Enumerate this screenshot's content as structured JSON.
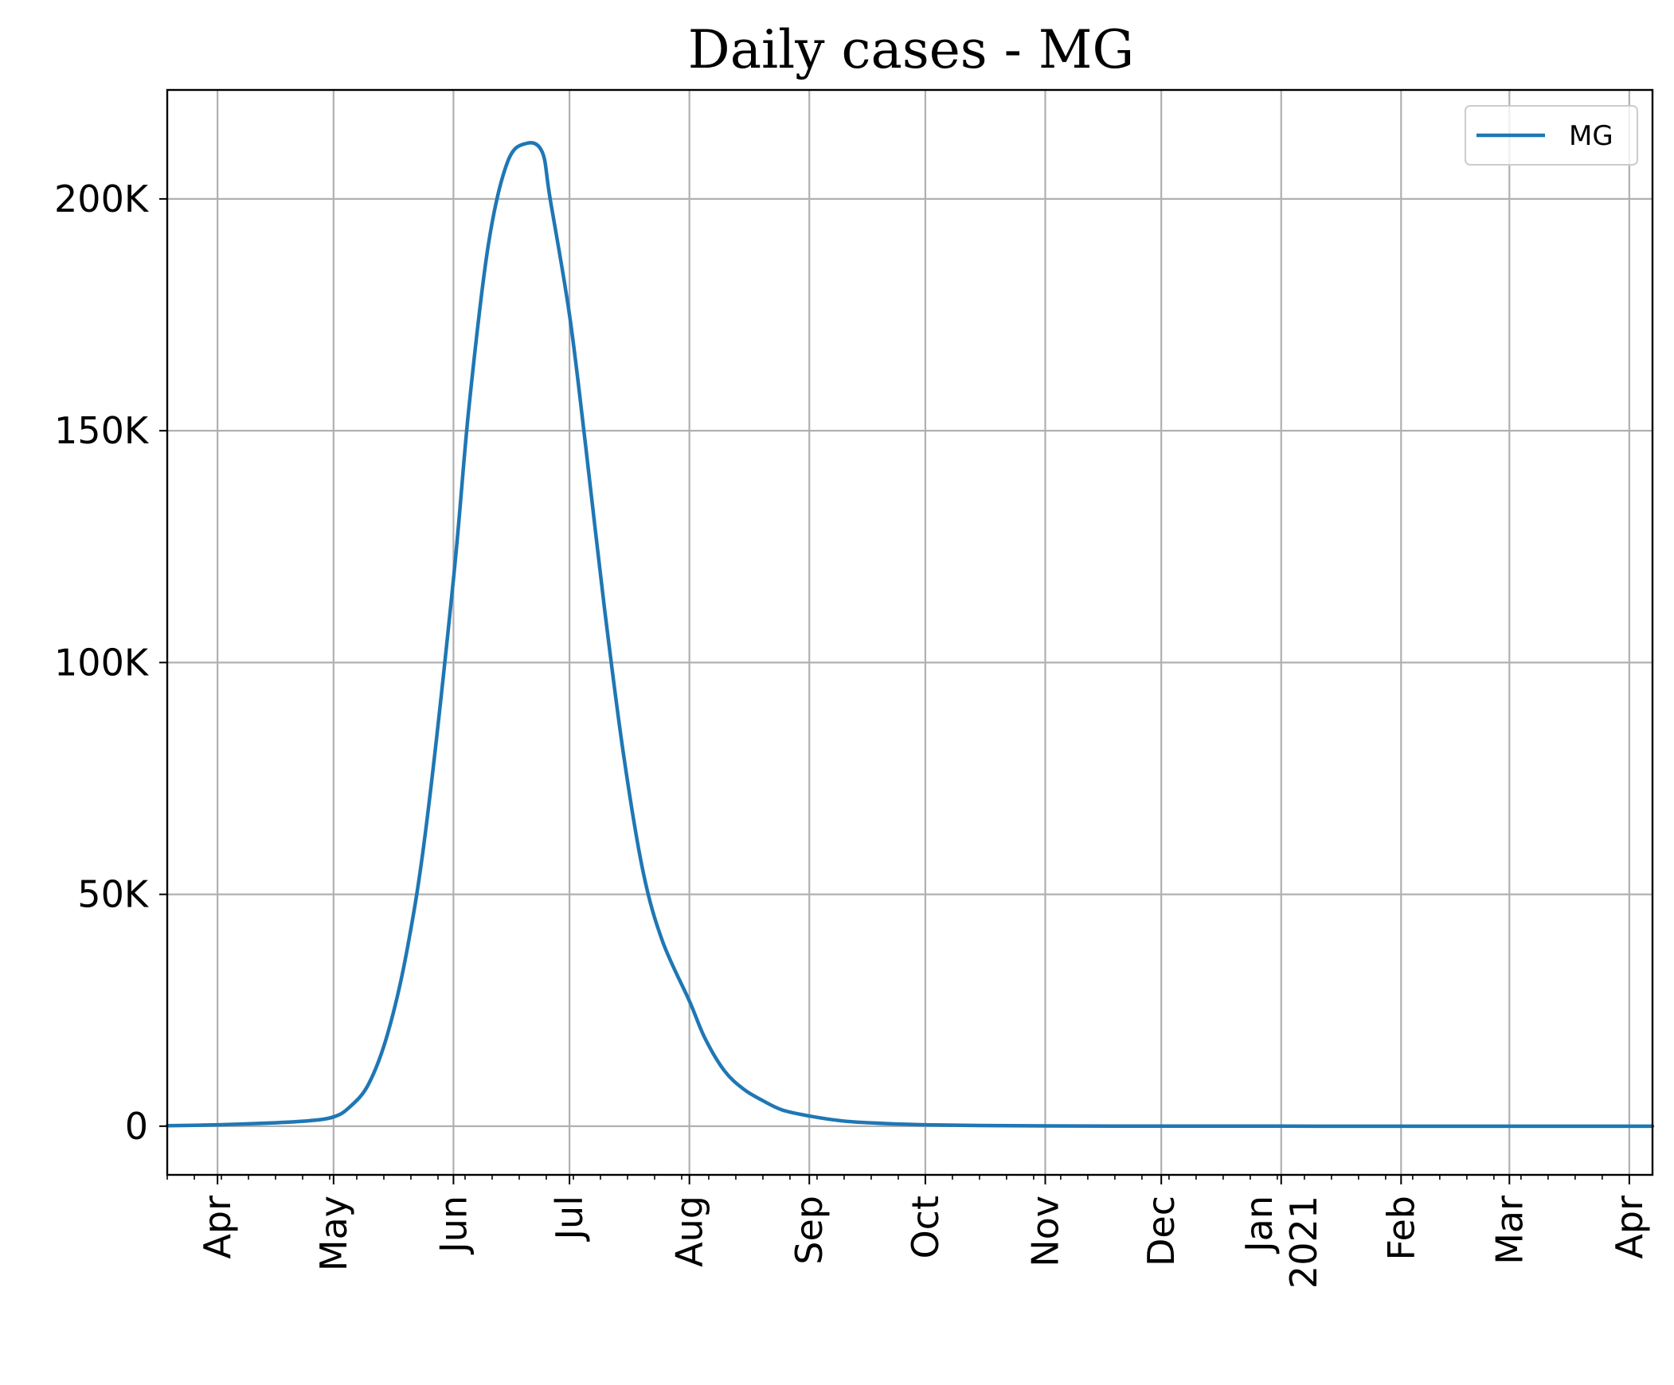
{
  "chart_data": {
    "type": "line",
    "title": "Daily cases - MG",
    "xlabel": "",
    "ylabel": "",
    "x_axis": {
      "type": "date",
      "range": [
        "2020-03-19",
        "2021-04-07"
      ],
      "ticks": [
        {
          "date": "2020-04-01",
          "label": "Apr"
        },
        {
          "date": "2020-05-01",
          "label": "May"
        },
        {
          "date": "2020-06-01",
          "label": "Jun"
        },
        {
          "date": "2020-07-01",
          "label": "Jul"
        },
        {
          "date": "2020-08-01",
          "label": "Aug"
        },
        {
          "date": "2020-09-01",
          "label": "Sep"
        },
        {
          "date": "2020-10-01",
          "label": "Oct"
        },
        {
          "date": "2020-11-01",
          "label": "Nov"
        },
        {
          "date": "2020-12-01",
          "label": "Dec"
        },
        {
          "date": "2021-01-01",
          "label": "Jan\n2021"
        },
        {
          "date": "2021-02-01",
          "label": "Feb"
        },
        {
          "date": "2021-03-01",
          "label": "Mar"
        },
        {
          "date": "2021-04-01",
          "label": "Apr"
        }
      ],
      "minor_ticks": "weekly"
    },
    "y_axis": {
      "range": [
        -10500,
        223500
      ],
      "ticks": [
        {
          "value": 0,
          "label": "0"
        },
        {
          "value": 50000,
          "label": "50K"
        },
        {
          "value": 100000,
          "label": "100K"
        },
        {
          "value": 150000,
          "label": "150K"
        },
        {
          "value": 200000,
          "label": "200K"
        }
      ]
    },
    "grid": true,
    "legend": {
      "position": "top-right",
      "entries": [
        "MG"
      ]
    },
    "series": [
      {
        "name": "MG",
        "color": "#1f77b4",
        "x": [
          "2020-03-19",
          "2020-04-01",
          "2020-04-15",
          "2020-04-25",
          "2020-05-01",
          "2020-05-05",
          "2020-05-10",
          "2020-05-15",
          "2020-05-20",
          "2020-05-25",
          "2020-06-01",
          "2020-06-05",
          "2020-06-10",
          "2020-06-15",
          "2020-06-20",
          "2020-06-24",
          "2020-06-26",
          "2020-07-01",
          "2020-07-05",
          "2020-07-10",
          "2020-07-15",
          "2020-07-20",
          "2020-07-25",
          "2020-08-01",
          "2020-08-05",
          "2020-08-10",
          "2020-08-15",
          "2020-08-20",
          "2020-08-25",
          "2020-09-01",
          "2020-09-10",
          "2020-09-20",
          "2020-10-01",
          "2020-10-15",
          "2020-11-01",
          "2020-12-01",
          "2021-01-01",
          "2021-02-01",
          "2021-03-01",
          "2021-04-07"
        ],
        "y": [
          100,
          300,
          700,
          1200,
          2000,
          4000,
          9000,
          20000,
          38000,
          65000,
          118000,
          155000,
          190000,
          208000,
          212000,
          210000,
          200000,
          175000,
          148000,
          112000,
          80000,
          55000,
          40000,
          27000,
          19000,
          12000,
          8000,
          5500,
          3500,
          2200,
          1100,
          600,
          300,
          150,
          50,
          10,
          5,
          2,
          1,
          1
        ]
      }
    ]
  }
}
